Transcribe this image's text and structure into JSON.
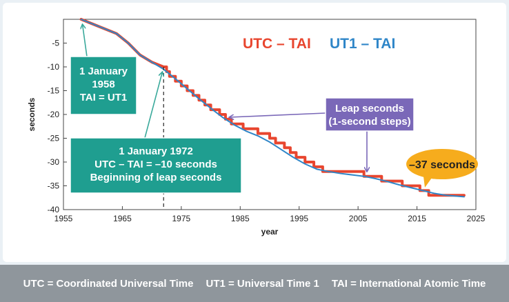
{
  "chart_data": {
    "type": "line",
    "xlabel": "year",
    "ylabel": "seconds",
    "xlim": [
      1955,
      2025
    ],
    "ylim": [
      -40,
      0
    ],
    "xticks": [
      1955,
      1965,
      1975,
      1985,
      1995,
      2005,
      2015,
      2025
    ],
    "yticks": [
      -5,
      -10,
      -15,
      -20,
      -25,
      -30,
      -35,
      -40
    ],
    "grid": false,
    "legend_position": "top-right",
    "series": [
      {
        "name": "UTC – TAI",
        "color": "#e8462f",
        "step": true,
        "x": [
          1958,
          1961,
          1964,
          1966,
          1968,
          1970,
          1972,
          1972.5,
          1973,
          1974,
          1975,
          1976,
          1977,
          1978,
          1979,
          1980,
          1981.5,
          1982.5,
          1983.5,
          1985.5,
          1988,
          1990,
          1991,
          1992.5,
          1993.5,
          1994.5,
          1996,
          1997.5,
          1999,
          2006,
          2009,
          2012.5,
          2015.5,
          2017,
          2023
        ],
        "y": [
          0,
          -1.5,
          -3,
          -5,
          -7.5,
          -9,
          -10,
          -11,
          -12,
          -13,
          -14,
          -15,
          -16,
          -17,
          -18,
          -19,
          -20,
          -21,
          -22,
          -23,
          -24,
          -25,
          -26,
          -27,
          -28,
          -29,
          -30,
          -31,
          -32,
          -33,
          -34,
          -35,
          -36,
          -37,
          -37
        ]
      },
      {
        "name": "UT1 – TAI",
        "color": "#2f86c8",
        "step": false,
        "x": [
          1958,
          1961,
          1964,
          1966,
          1968,
          1970,
          1972,
          1974,
          1976,
          1978,
          1980,
          1982,
          1984,
          1986,
          1988,
          1990,
          1992,
          1994,
          1996,
          1998,
          2000,
          2002,
          2004,
          2006,
          2008,
          2010,
          2012,
          2014,
          2016,
          2018,
          2020,
          2023
        ],
        "y": [
          0,
          -1.5,
          -3,
          -5,
          -7.5,
          -9,
          -10.5,
          -12.5,
          -14.6,
          -16.7,
          -18.7,
          -20.6,
          -22.2,
          -23.5,
          -24.5,
          -25.8,
          -27.4,
          -29.0,
          -30.4,
          -31.5,
          -32.0,
          -32.4,
          -32.7,
          -33.0,
          -33.5,
          -34.1,
          -34.8,
          -35.4,
          -36.0,
          -36.6,
          -37.0,
          -37.3
        ]
      }
    ],
    "annotations": {
      "start": {
        "line1": "1 January",
        "line2": "1958",
        "line3": "TAI = UT1",
        "x": 1958,
        "y": 0
      },
      "leap": {
        "line1": "1 January 1972",
        "line2": "UTC – TAI  = –10 seconds",
        "line3": "Beginning of leap seconds",
        "x": 1972,
        "y": -10
      },
      "steps": {
        "line1": "Leap seconds",
        "line2": "(1-second steps)",
        "arrow_x1": 1983,
        "arrow_y1": -20,
        "arrow_x2": 2006.5,
        "arrow_y2": -32.5
      },
      "current": {
        "text": "–37 seconds"
      }
    }
  },
  "footer": {
    "utc": "UTC = Coordinated Universal Time",
    "ut1": "UT1 = Universal Time 1",
    "tai": "TAI = International Atomic Time"
  }
}
